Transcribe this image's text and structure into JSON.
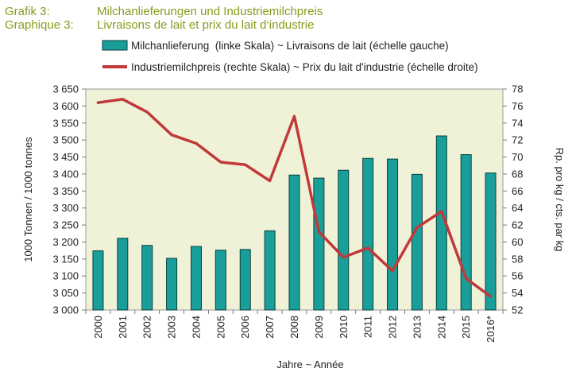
{
  "header": {
    "line1_label": "Grafik 3:",
    "line1_text": "Milchanlieferungen und Industriemilchpreis",
    "line2_label": "Graphique 3:",
    "line2_text": "Livraisons de lait et prix du lait d‘industrie"
  },
  "colors": {
    "header": "#8a9a1c",
    "bar_fill": "#1a9e9a",
    "bar_stroke": "#0b3f3f",
    "line": "#c0393b",
    "plot_bg": "#f0f2d8"
  },
  "chart_data": {
    "type": "bar",
    "categories": [
      "2000",
      "2001",
      "2002",
      "2003",
      "2004",
      "2005",
      "2006",
      "2007",
      "2008",
      "2009",
      "2010",
      "2011",
      "2012",
      "2013",
      "2014",
      "2015",
      "2016*"
    ],
    "series": [
      {
        "name": "Milchanlieferung  (linke Skala) ~ Livraisons de lait (échelle gauche)",
        "type": "bar",
        "axis": "left",
        "values": [
          3174,
          3211,
          3190,
          3152,
          3187,
          3176,
          3178,
          3233,
          3397,
          3388,
          3411,
          3446,
          3444,
          3399,
          3512,
          3457,
          3403
        ]
      },
      {
        "name": "Industriemilchpreis (rechte Skala) ~ Prix du lait d'industrie (échelle droite)",
        "type": "line",
        "axis": "right",
        "values": [
          76.4,
          76.8,
          75.3,
          72.6,
          71.6,
          69.4,
          69.1,
          67.2,
          74.8,
          61.2,
          58.2,
          59.3,
          56.6,
          61.7,
          63.6,
          55.7,
          53.6
        ]
      }
    ],
    "xlabel": "Jahre  ~ Année",
    "ylabel_left": "1000 Tonnen / 1000 tonnes",
    "ylabel_right": "Rp. pro kg / cts. par kg",
    "ylim_left": [
      3000,
      3650
    ],
    "yticks_left": [
      3000,
      3050,
      3100,
      3150,
      3200,
      3250,
      3300,
      3350,
      3400,
      3450,
      3500,
      3550,
      3600,
      3650
    ],
    "yticklabels_left": [
      "3 000",
      "3 050",
      "3 100",
      "3 150",
      "3 200",
      "3 250",
      "3 300",
      "3 350",
      "3 400",
      "3 450",
      "3 500",
      "3 550",
      "3 600",
      "3 650"
    ],
    "ylim_right": [
      52,
      78
    ],
    "yticks_right": [
      52,
      54,
      56,
      58,
      60,
      62,
      64,
      66,
      68,
      70,
      72,
      74,
      76,
      78
    ],
    "legend_position": "top",
    "grid": false
  }
}
